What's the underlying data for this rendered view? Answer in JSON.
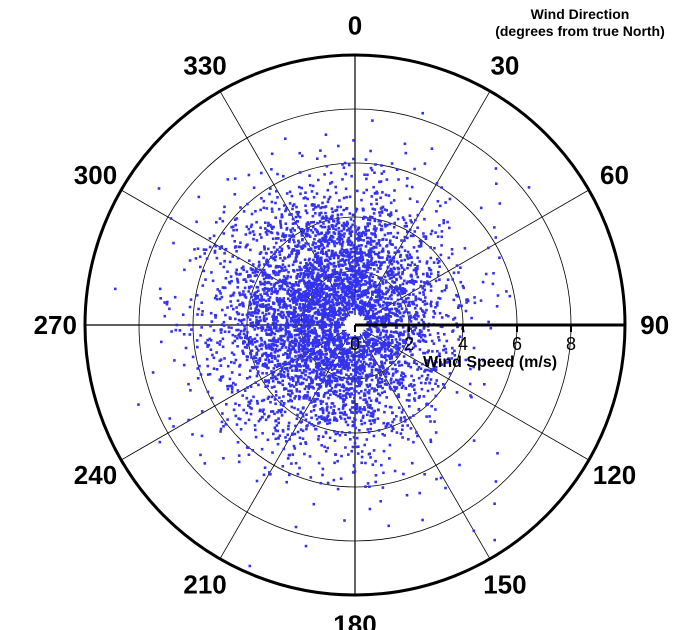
{
  "chart_data": {
    "type": "scatter",
    "projection": "polar",
    "title_lines": [
      "Wind Direction",
      "(degrees from true North)"
    ],
    "radial_axis_label": "Wind Speed (m/s)",
    "radial_ticks": [
      0,
      2,
      4,
      6,
      8
    ],
    "rlim": [
      0,
      10
    ],
    "angle_ticks": [
      0,
      30,
      60,
      90,
      120,
      150,
      180,
      210,
      240,
      270,
      300,
      330
    ],
    "angle_zero": "north",
    "angle_direction": "clockwise",
    "grid": true,
    "point_color": "#3333ee",
    "series": [
      {
        "cloud": {
          "count": 5200,
          "mean_x": -0.8,
          "mean_y": 0.3,
          "sd_x": 2.0,
          "sd_y": 2.2,
          "min_radius": 0.45
        },
        "outliers": [
          {
            "dir": 42,
            "speed": 7.8
          },
          {
            "dir": 45,
            "speed": 7.4
          },
          {
            "dir": 50,
            "speed": 7.0
          },
          {
            "dir": 55,
            "speed": 6.3
          },
          {
            "dir": 65,
            "speed": 5.9
          },
          {
            "dir": 132,
            "speed": 7.1
          },
          {
            "dir": 138,
            "speed": 7.8
          },
          {
            "dir": 142,
            "speed": 8.4
          },
          {
            "dir": 147,
            "speed": 9.5
          },
          {
            "dir": 150,
            "speed": 8.8
          },
          {
            "dir": 155,
            "speed": 6.1
          },
          {
            "dir": 265,
            "speed": 7.2
          },
          {
            "dir": 270,
            "speed": 6.6
          },
          {
            "dir": 275,
            "speed": 6.9
          },
          {
            "dir": 248,
            "speed": 5.4
          }
        ]
      }
    ]
  }
}
